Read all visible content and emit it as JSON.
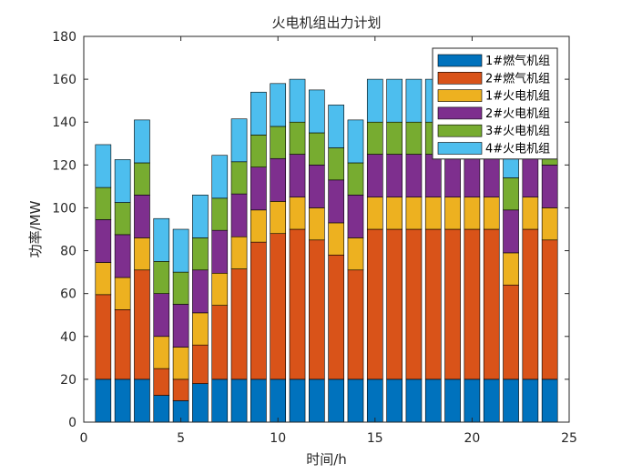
{
  "chart_data": {
    "type": "bar",
    "stacked": true,
    "title": "火电机组出力计划",
    "xlabel": "时间/h",
    "ylabel": "功率/MW",
    "xlim": [
      0,
      25
    ],
    "ylim": [
      0,
      180
    ],
    "xticks": [
      0,
      5,
      10,
      15,
      20,
      25
    ],
    "yticks": [
      0,
      20,
      40,
      60,
      80,
      100,
      120,
      140,
      160,
      180
    ],
    "grid": false,
    "legend_position": "top-right",
    "x": [
      1,
      2,
      3,
      4,
      5,
      6,
      7,
      8,
      9,
      10,
      11,
      12,
      13,
      14,
      15,
      16,
      17,
      18,
      19,
      20,
      21,
      22,
      23,
      24
    ],
    "series": [
      {
        "name": "1#燃气机组",
        "color": "#0072BD",
        "values": [
          20,
          20,
          20,
          12.5,
          10,
          18,
          20,
          20,
          20,
          20,
          20,
          20,
          20,
          20,
          20,
          20,
          20,
          20,
          20,
          20,
          20,
          20,
          20,
          20
        ]
      },
      {
        "name": "2#燃气机组",
        "color": "#D95319",
        "values": [
          39.5,
          32.5,
          51,
          12.5,
          10,
          18,
          34.5,
          51.5,
          64,
          68,
          70,
          65,
          58,
          51,
          70,
          70,
          70,
          70,
          70,
          70,
          70,
          44,
          70,
          65
        ]
      },
      {
        "name": "1#火电机组",
        "color": "#EDB120",
        "values": [
          15,
          15,
          15,
          15,
          15,
          15,
          15,
          15,
          15,
          15,
          15,
          15,
          15,
          15,
          15,
          15,
          15,
          15,
          15,
          15,
          15,
          15,
          15,
          15
        ]
      },
      {
        "name": "2#火电机组",
        "color": "#7E2F8E",
        "values": [
          20,
          20,
          20,
          20,
          20,
          20,
          20,
          20,
          20,
          20,
          20,
          20,
          20,
          20,
          20,
          20,
          20,
          20,
          20,
          20,
          20,
          20,
          20,
          20
        ]
      },
      {
        "name": "3#火电机组",
        "color": "#77AC30",
        "values": [
          15,
          15,
          15,
          15,
          15,
          15,
          15,
          15,
          15,
          15,
          15,
          15,
          15,
          15,
          15,
          15,
          15,
          15,
          15,
          15,
          15,
          15,
          15,
          15
        ]
      },
      {
        "name": "4#火电机组",
        "color": "#4DBEEE",
        "values": [
          20,
          20,
          20,
          20,
          20,
          20,
          20,
          20,
          20,
          20,
          20,
          20,
          20,
          20,
          20,
          20,
          20,
          20,
          20,
          20,
          20,
          20,
          20,
          20
        ]
      }
    ]
  }
}
